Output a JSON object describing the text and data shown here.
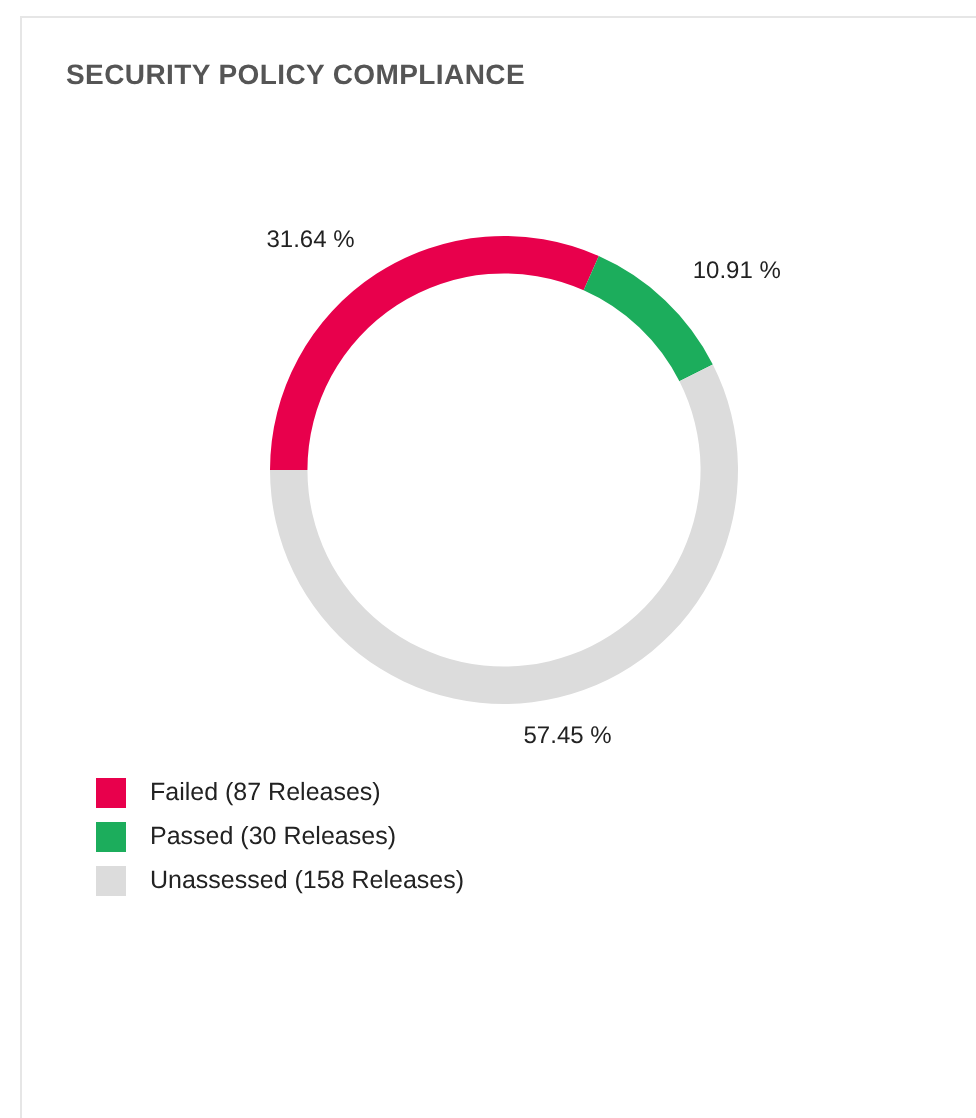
{
  "chart_data": {
    "type": "donut",
    "title": "SECURITY POLICY COMPLIANCE",
    "categories": [
      "Failed (87 Releases)",
      "Passed (30 Releases)",
      "Unassessed (158 Releases)"
    ],
    "values": [
      31.64,
      10.91,
      57.45
    ],
    "value_labels": [
      "31.64 %",
      "10.91 %",
      "57.45 %"
    ],
    "colors": [
      "#e8004c",
      "#1cad5c",
      "#dcdcdc"
    ],
    "legend": "bottom left"
  }
}
